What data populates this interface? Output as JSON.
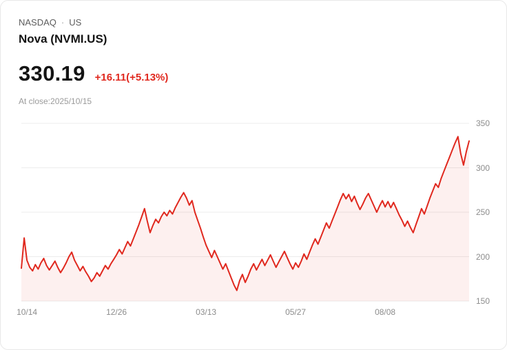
{
  "header": {
    "exchange": "NASDAQ",
    "separator": "·",
    "region": "US",
    "name": "Nova (NVMI.US)"
  },
  "quote": {
    "price": "330.19",
    "change": "+16.11(+5.13%)",
    "close_info": "At close:2025/10/15"
  },
  "colors": {
    "accent_red": "#e0281e",
    "area_fill": "rgba(224,40,30,0.07)",
    "grid": "#ececec",
    "axis_text": "#8c8c8c"
  },
  "chart_data": {
    "type": "area",
    "xlabel": "",
    "ylabel": "",
    "ylim": [
      150,
      350
    ],
    "yticks": [
      150,
      200,
      250,
      300,
      350
    ],
    "grid": true,
    "legend": false,
    "x_tick_labels": [
      "10/14",
      "12/26",
      "03/13",
      "05/27",
      "08/08"
    ],
    "x_tick_indices": [
      2,
      34,
      66,
      98,
      130
    ],
    "values": [
      187,
      221,
      196,
      188,
      184,
      191,
      186,
      193,
      198,
      190,
      185,
      190,
      195,
      188,
      182,
      187,
      193,
      200,
      205,
      196,
      190,
      184,
      189,
      183,
      178,
      172,
      176,
      182,
      178,
      184,
      190,
      186,
      192,
      197,
      202,
      208,
      203,
      210,
      217,
      212,
      220,
      228,
      236,
      245,
      254,
      240,
      227,
      235,
      242,
      238,
      245,
      250,
      246,
      252,
      248,
      255,
      261,
      267,
      272,
      266,
      258,
      263,
      250,
      241,
      232,
      222,
      213,
      206,
      199,
      207,
      200,
      193,
      186,
      192,
      184,
      176,
      168,
      162,
      173,
      180,
      171,
      178,
      186,
      192,
      185,
      191,
      197,
      190,
      196,
      202,
      195,
      188,
      194,
      200,
      206,
      199,
      192,
      186,
      193,
      188,
      195,
      203,
      197,
      205,
      213,
      220,
      214,
      222,
      230,
      238,
      232,
      240,
      248,
      256,
      264,
      271,
      265,
      270,
      262,
      268,
      260,
      253,
      259,
      266,
      271,
      264,
      257,
      250,
      257,
      263,
      256,
      262,
      255,
      261,
      254,
      247,
      241,
      234,
      240,
      233,
      227,
      236,
      245,
      254,
      248,
      257,
      266,
      274,
      282,
      278,
      288,
      296,
      304,
      312,
      320,
      328,
      335,
      316,
      303,
      318,
      330.19
    ]
  }
}
